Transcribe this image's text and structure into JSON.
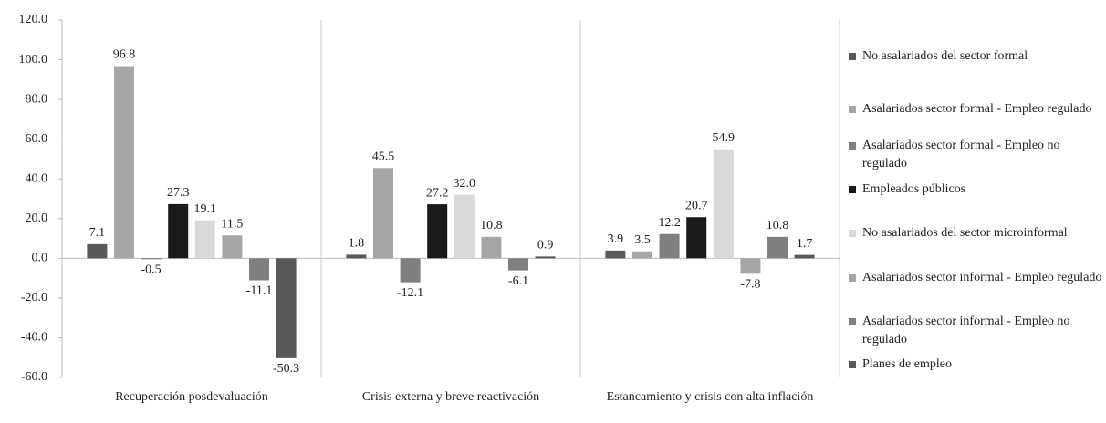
{
  "chart_data": {
    "type": "bar",
    "categories": [
      "Recuperación posdevaluación",
      "Crisis externa y breve reactivación",
      "Estancamiento y crisis con alta inflación"
    ],
    "series": [
      {
        "name": "No asalariados del sector formal",
        "color": "#595959",
        "values": [
          7.1,
          1.8,
          3.9
        ]
      },
      {
        "name": "Asalariados sector formal - Empleo regulado",
        "color": "#a6a6a6",
        "values": [
          96.8,
          45.5,
          3.5
        ]
      },
      {
        "name": "Asalariados sector formal - Empleo no regulado",
        "color": "#7f7f7f",
        "values": [
          -0.5,
          -12.1,
          12.2
        ]
      },
      {
        "name": "Empleados públicos",
        "color": "#1a1a1a",
        "values": [
          27.3,
          27.2,
          20.7
        ]
      },
      {
        "name": "No asalariados del sector microinformal",
        "color": "#d9d9d9",
        "values": [
          19.1,
          32.0,
          54.9
        ],
        "value_labels": [
          "19.1",
          "32.0",
          "54.9"
        ]
      },
      {
        "name": "Asalariados sector informal - Empleo regulado",
        "color": "#a6a6a6",
        "values": [
          11.5,
          10.8,
          -7.8
        ]
      },
      {
        "name": "Asalariados sector informal - Empleo no regulado",
        "color": "#7f7f7f",
        "values": [
          -11.1,
          -6.1,
          10.8
        ]
      },
      {
        "name": "Planes de empleo",
        "color": "#595959",
        "values": [
          -50.3,
          0.9,
          1.7
        ]
      }
    ],
    "ylim": [
      -60,
      120
    ],
    "yticks": [
      {
        "value": -60,
        "label": "-60.0"
      },
      {
        "value": -40,
        "label": "-40.0"
      },
      {
        "value": -20,
        "label": "-20.0"
      },
      {
        "value": 0,
        "label": "0.0"
      },
      {
        "value": 20,
        "label": "20.0"
      },
      {
        "value": 40,
        "label": "40.0"
      },
      {
        "value": 60,
        "label": "60.0"
      },
      {
        "value": 80,
        "label": "80.0"
      },
      {
        "value": 100,
        "label": "100.0"
      },
      {
        "value": 120,
        "label": "120.0"
      }
    ],
    "grid": false
  }
}
